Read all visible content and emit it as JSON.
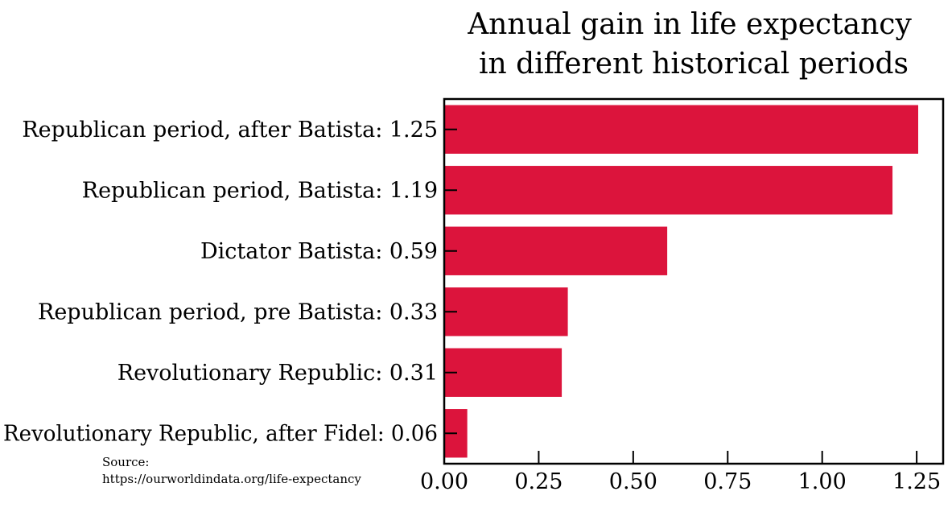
{
  "chart_data": {
    "type": "bar",
    "orientation": "horizontal",
    "title": [
      "Annual gain in life expectancy",
      "in different historical periods"
    ],
    "categories": [
      "Republican period, after Batista: 1.25",
      "Republican period, Batista: 1.19",
      "Dictator Batista: 0.59",
      "Republican period, pre Batista: 0.33",
      "Revolutionary Republic: 0.31",
      "Revolutionary Republic, after Fidel: 0.06"
    ],
    "values": [
      1.254,
      1.186,
      0.59,
      0.327,
      0.311,
      0.061
    ],
    "xlim": [
      0,
      1.32
    ],
    "xticks": [
      0.0,
      0.25,
      0.5,
      0.75,
      1.0,
      1.25
    ],
    "xtick_labels": [
      "0.00",
      "0.25",
      "0.50",
      "0.75",
      "1.00",
      "1.25"
    ],
    "bar_color": "#dc143c",
    "grid": false,
    "legend": "none",
    "source": [
      "Source:",
      "https://ourworldindata.org/life-expectancy"
    ]
  }
}
